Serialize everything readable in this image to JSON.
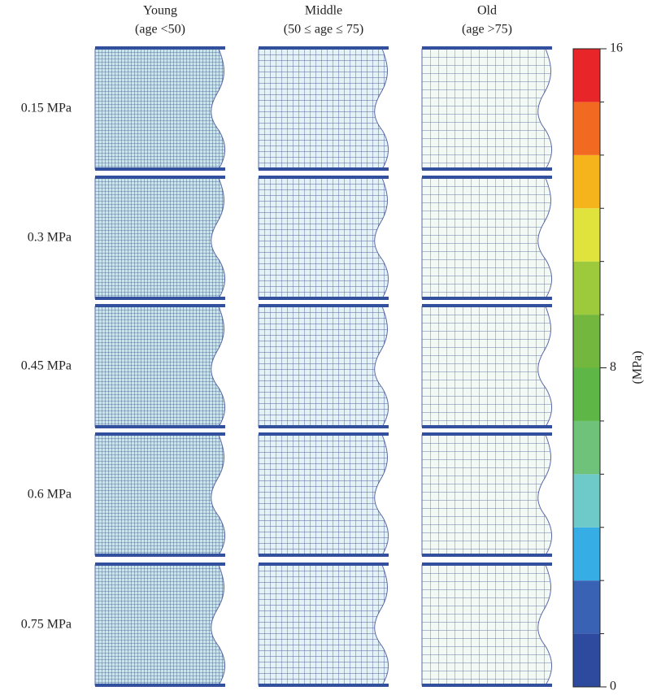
{
  "columns": [
    {
      "title": "Young",
      "subtitle": "(age <50)"
    },
    {
      "title": "Middle",
      "subtitle": "(50 ≤ age ≤ 75)"
    },
    {
      "title": "Old",
      "subtitle": "(age >75)"
    }
  ],
  "rows": [
    "0.15 MPa",
    "0.3 MPa",
    "0.45 MPa",
    "0.6 MPa",
    "0.75 MPa"
  ],
  "colorbar": {
    "label": "(MPa)",
    "lim": [
      0,
      16
    ],
    "ticks": [
      0,
      8,
      16
    ],
    "colors": [
      "#2e4a9e",
      "#3a62b4",
      "#36ade4",
      "#6dcac8",
      "#6ec27a",
      "#5db646",
      "#74b73e",
      "#9cca3c",
      "#dfe33b",
      "#f5b31c",
      "#f26a22",
      "#e8262a"
    ]
  }
}
